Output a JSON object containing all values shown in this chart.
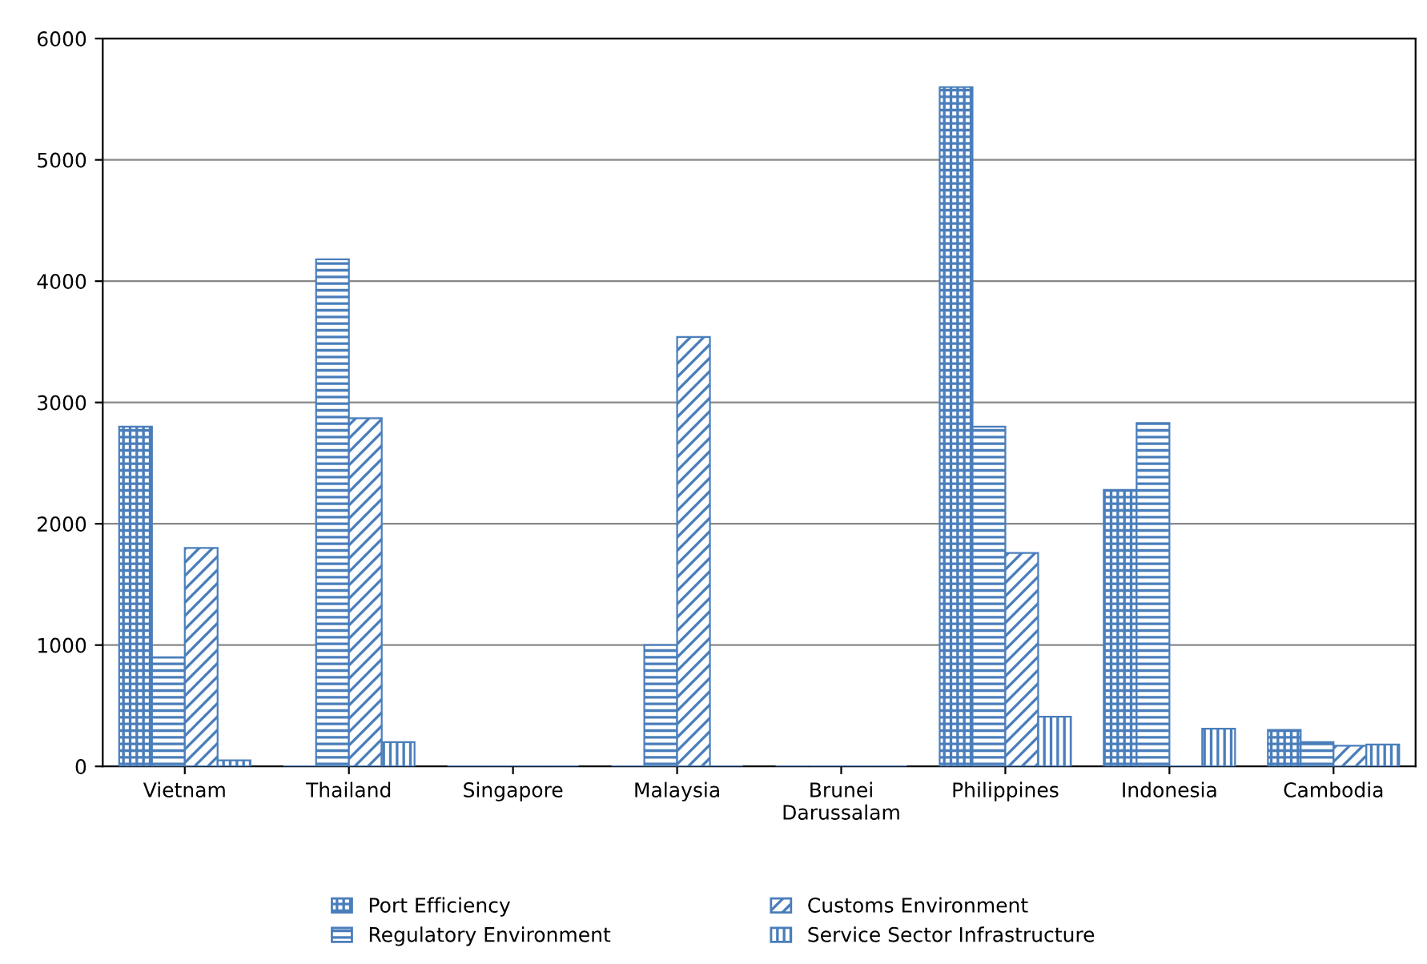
{
  "chart_data": {
    "type": "bar",
    "categories": [
      "Vietnam",
      "Thailand",
      "Singapore",
      "Malaysia",
      "Brunei\nDarussalam",
      "Philippines",
      "Indonesia",
      "Cambodia"
    ],
    "series": [
      {
        "name": "Port Efficiency",
        "color": "#4a7ebb",
        "values": [
          2800,
          0,
          0,
          0,
          0,
          5600,
          2280,
          300
        ]
      },
      {
        "name": "Regulatory Environment",
        "color": "#4a7ebb",
        "values": [
          900,
          4180,
          0,
          1000,
          0,
          2800,
          2830,
          200
        ]
      },
      {
        "name": "Customs Environment",
        "color": "#4a7ebb",
        "values": [
          1800,
          2870,
          0,
          3540,
          0,
          1760,
          0,
          170
        ]
      },
      {
        "name": "Service Sector Infrastructure",
        "color": "#4a7ebb",
        "values": [
          50,
          200,
          0,
          0,
          0,
          410,
          310,
          180
        ]
      }
    ],
    "ylim": [
      0,
      6000
    ],
    "yticks": [
      0,
      1000,
      2000,
      3000,
      4000,
      5000,
      6000
    ],
    "grid": "y",
    "legend": "bottom"
  }
}
